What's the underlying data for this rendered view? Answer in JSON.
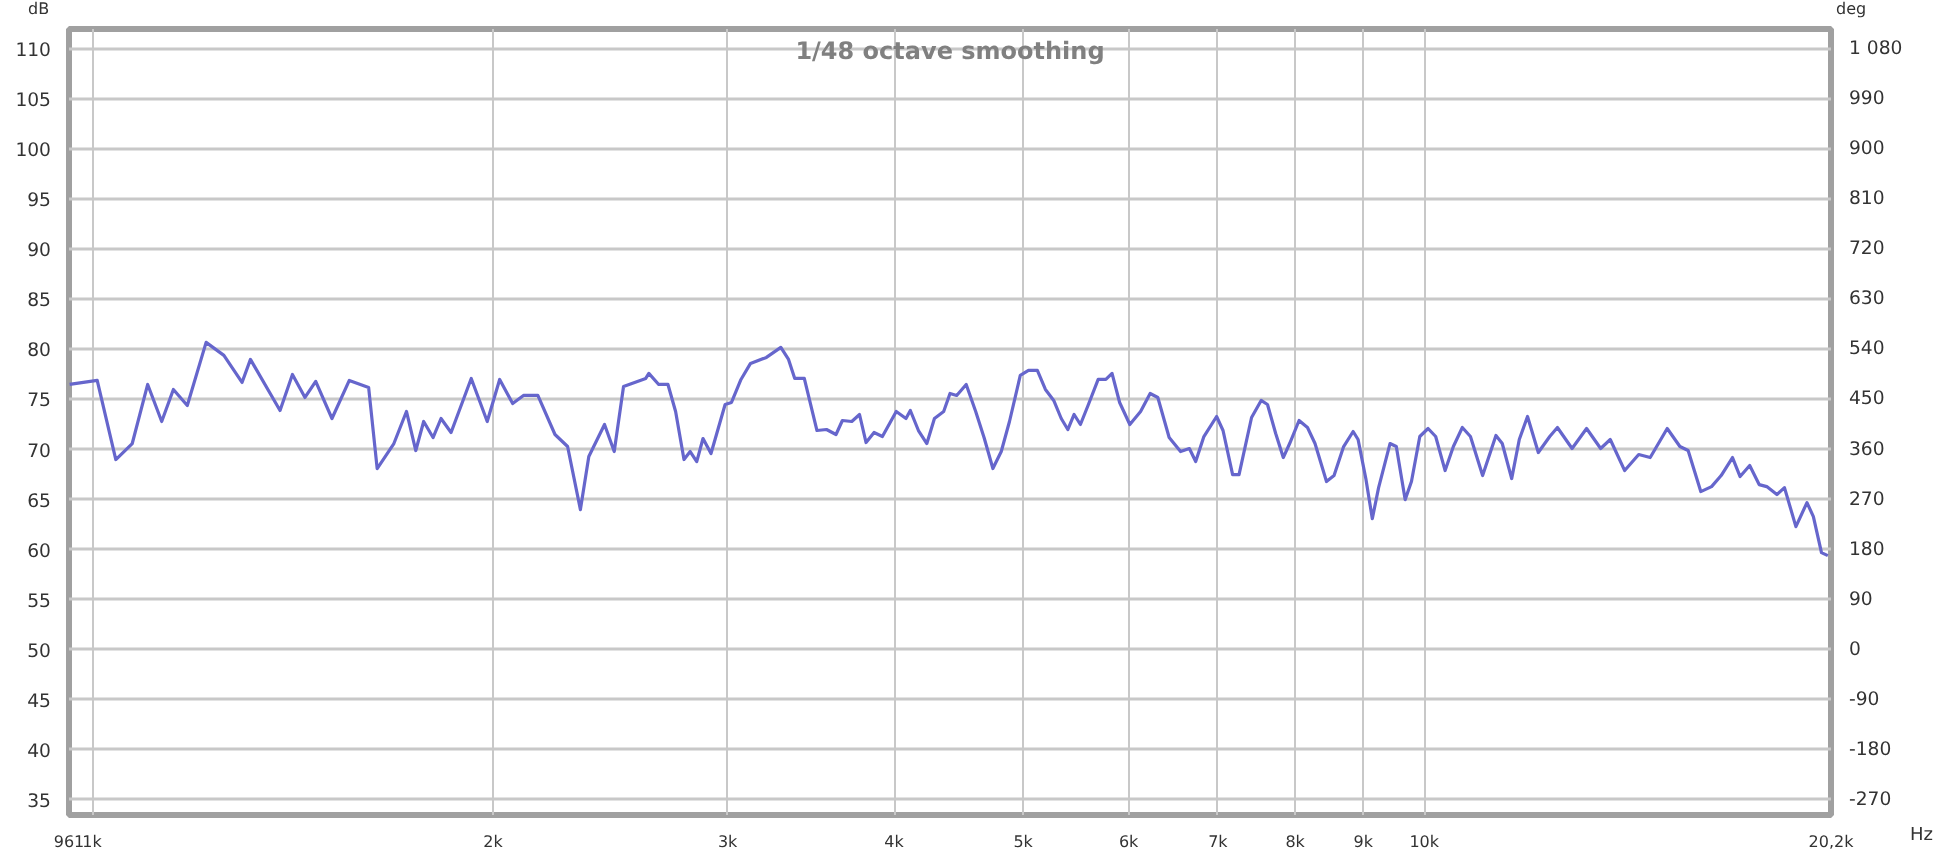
{
  "chart_data": {
    "type": "line",
    "title": "1/48 octave smoothing",
    "xlabel": "Hz",
    "ylabel": "dB",
    "y2label": "deg",
    "log": "x",
    "grid": true,
    "line_style": "solid",
    "marker": "none",
    "xlim": [
      961,
      20200
    ],
    "ylim": [
      33.5,
      112
    ],
    "y2lim": [
      -297,
      1116
    ],
    "xticks": [
      {
        "value": 961,
        "label": "961"
      },
      {
        "value": 1000,
        "label": "1k"
      },
      {
        "value": 2000,
        "label": "2k"
      },
      {
        "value": 3000,
        "label": "3k"
      },
      {
        "value": 4000,
        "label": "4k"
      },
      {
        "value": 5000,
        "label": "5k"
      },
      {
        "value": 6000,
        "label": "6k"
      },
      {
        "value": 7000,
        "label": "7k"
      },
      {
        "value": 8000,
        "label": "8k"
      },
      {
        "value": 9000,
        "label": "9k"
      },
      {
        "value": 10000,
        "label": "10k"
      },
      {
        "value": 20200,
        "label": "20,2k"
      }
    ],
    "yticks": [
      35,
      40,
      45,
      50,
      55,
      60,
      65,
      70,
      75,
      80,
      85,
      90,
      95,
      100,
      105,
      110
    ],
    "y2ticks": [
      -270,
      -180,
      -90,
      0,
      90,
      180,
      270,
      360,
      450,
      540,
      630,
      720,
      810,
      900,
      990,
      {
        "value": 1080,
        "label": "1 080"
      }
    ],
    "series": [
      {
        "color": "#6666cc",
        "x": [
          962,
          1009,
          1042,
          1072,
          1101,
          1128,
          1151,
          1179,
          1218,
          1256,
          1296,
          1315,
          1384,
          1414,
          1445,
          1472,
          1514,
          1560,
          1613,
          1637,
          1685,
          1722,
          1750,
          1774,
          1803,
          1828,
          1860,
          1926,
          1980,
          2023,
          2069,
          2108,
          2161,
          2226,
          2275,
          2326,
          2360,
          2425,
          2466,
          2506,
          2604,
          2618,
          2663,
          2706,
          2742,
          2782,
          2812,
          2844,
          2875,
          2915,
          2987,
          3020,
          3070,
          3121,
          3208,
          3289,
          3333,
          3369,
          3425,
          3501,
          3559,
          3618,
          3658,
          3718,
          3768,
          3811,
          3864,
          3920,
          4015,
          4083,
          4114,
          4172,
          4233,
          4289,
          4358,
          4406,
          4457,
          4531,
          4606,
          4673,
          4745,
          4814,
          4883,
          4975,
          5046,
          5124,
          5196,
          5271,
          5340,
          5401,
          5460,
          5520,
          5593,
          5692,
          5768,
          5830,
          5907,
          6012,
          6125,
          6227,
          6310,
          6435,
          6563,
          6664,
          6737,
          6833,
          6985,
          7063,
          7181,
          7261,
          7420,
          7544,
          7627,
          7736,
          7838,
          7925,
          8055,
          8173,
          8280,
          8446,
          8557,
          8700,
          8844,
          8920,
          9040,
          9142,
          9242,
          9426,
          9529,
          9676,
          9782,
          9924,
          10067,
          10200,
          10368,
          10517,
          10681,
          10832,
          11062,
          11320,
          11444,
          11632,
          11786,
          11955,
          12180,
          12423,
          12589,
          12912,
          13240,
          13566,
          13793,
          14141,
          14488,
          14779,
          15220,
          15557,
          15780,
          16129,
          16432,
          16707,
          17038,
          17263,
          17552,
          17841,
          18077,
          18397,
          18639,
          19011,
          19378,
          19594,
          19870,
          20090
        ],
        "values": [
          76.5,
          76.9,
          69.0,
          70.6,
          76.5,
          72.8,
          76.0,
          74.4,
          80.7,
          79.4,
          76.7,
          79.0,
          73.9,
          77.5,
          75.2,
          76.8,
          73.1,
          76.9,
          76.2,
          68.1,
          70.6,
          73.8,
          69.9,
          72.8,
          71.2,
          73.1,
          71.7,
          77.1,
          72.8,
          77.0,
          74.6,
          75.4,
          75.4,
          71.5,
          70.3,
          64.0,
          69.3,
          72.5,
          69.8,
          76.3,
          77.1,
          77.6,
          76.5,
          76.5,
          73.8,
          69.0,
          69.8,
          68.8,
          71.1,
          69.6,
          74.5,
          74.7,
          77.0,
          78.6,
          79.2,
          80.2,
          79.0,
          77.1,
          77.1,
          71.9,
          72.0,
          71.5,
          72.9,
          72.8,
          73.5,
          70.7,
          71.7,
          71.3,
          73.8,
          73.1,
          73.9,
          71.9,
          70.6,
          73.1,
          73.8,
          75.6,
          75.4,
          76.5,
          73.8,
          71.2,
          68.1,
          69.8,
          72.8,
          77.4,
          77.9,
          77.9,
          76.0,
          74.9,
          73.1,
          72.0,
          73.5,
          72.5,
          74.4,
          77.0,
          77.0,
          77.6,
          74.7,
          72.5,
          73.8,
          75.6,
          75.2,
          71.2,
          69.8,
          70.1,
          68.8,
          71.3,
          73.3,
          71.9,
          67.5,
          67.5,
          73.2,
          74.9,
          74.5,
          71.6,
          69.2,
          70.6,
          72.9,
          72.2,
          70.6,
          66.8,
          67.4,
          70.3,
          71.8,
          71.0,
          67.1,
          63.1,
          66.2,
          70.6,
          70.3,
          65.0,
          66.8,
          71.3,
          72.1,
          71.3,
          67.9,
          70.3,
          72.2,
          71.3,
          67.4,
          71.4,
          70.6,
          67.1,
          71.0,
          73.3,
          69.7,
          71.3,
          72.2,
          70.1,
          72.1,
          70.1,
          71.0,
          67.9,
          69.5,
          69.2,
          72.1,
          70.3,
          69.9,
          65.8,
          66.3,
          67.4,
          69.2,
          67.3,
          68.4,
          66.5,
          66.3,
          65.5,
          66.2,
          62.3,
          64.7,
          63.3,
          59.7,
          59.4
        ]
      }
    ]
  }
}
